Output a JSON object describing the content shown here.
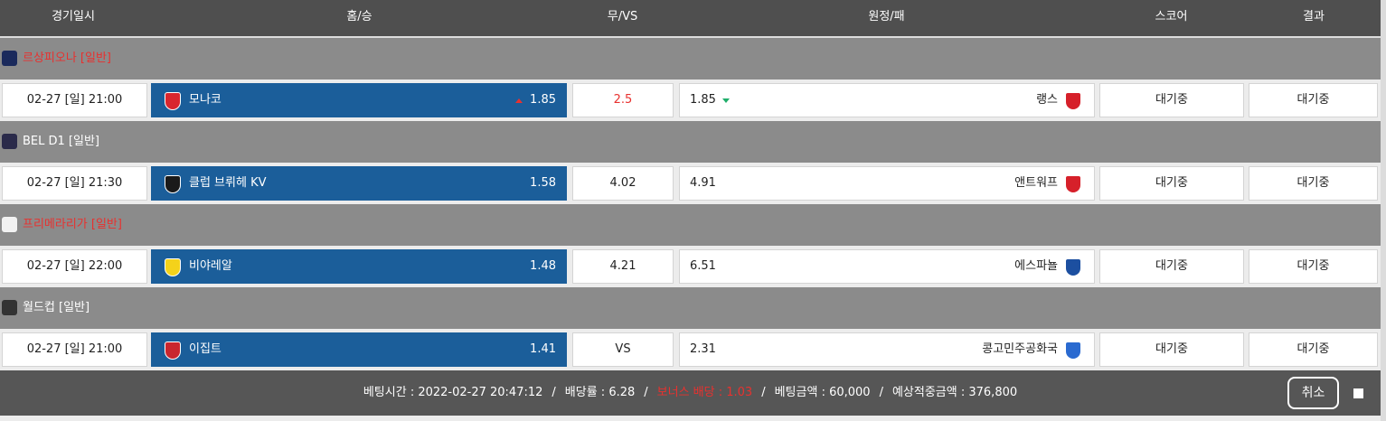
{
  "header": {
    "columns": [
      "경기일시",
      "홈/승",
      "무/VS",
      "원정/패",
      "스코어",
      "결과"
    ]
  },
  "leagues": [
    {
      "name": "르상피오나 [일반]",
      "color": "#e8312f",
      "match": {
        "date": "02-27 [일] 21:00",
        "home": "모나코",
        "home_odds": 1.85,
        "draw": 2.5,
        "draw_color": "#e8312f",
        "away_odds": 1.85,
        "away": "랭스",
        "score": "대기중",
        "result": "대기중"
      }
    },
    {
      "name": "BEL D1 [일반]",
      "color": "#ffffff",
      "match": {
        "date": "02-27 [일] 21:30",
        "home": "클럽 브뤼헤 KV",
        "home_odds": 1.58,
        "draw": 4.02,
        "draw_color": "#222222",
        "away_odds": 4.91,
        "away": "앤트워프",
        "score": "대기중",
        "result": "대기중"
      }
    },
    {
      "name": "프리메라리가 [일반]",
      "color": "#e8312f",
      "match": {
        "date": "02-27 [일] 22:00",
        "home": "비야레알",
        "home_odds": 1.48,
        "draw": 4.21,
        "draw_color": "#222222",
        "away_odds": 6.51,
        "away": "에스파뇰",
        "score": "대기중",
        "result": "대기중"
      }
    },
    {
      "name": "월드컵 [일반]",
      "color": "#ffffff",
      "match": {
        "date": "02-27 [일] 21:00",
        "home": "이집트",
        "home_odds": 1.41,
        "draw": "VS",
        "draw_color": "#222222",
        "away_odds": 2.31,
        "away": "콩고민주공화국",
        "score": "대기중",
        "result": "대기중"
      }
    }
  ],
  "footer": {
    "items": [
      "베팅시간 : 2022-02-27 20:47:12",
      "배당률 : 6.28",
      "보너스 배당 : 1.03",
      "베팅금액 : 60,000",
      "예상적중금액 : 376,800"
    ],
    "separator": "/",
    "highlight_color": "#e8312f",
    "highlight_index": 2,
    "cancel": "취소"
  }
}
